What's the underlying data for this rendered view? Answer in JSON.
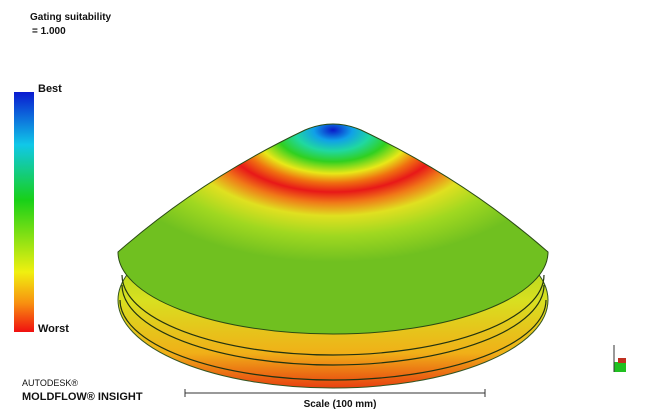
{
  "legend": {
    "title": "Gating suitability",
    "value": "= 1.000",
    "max_label": "Best",
    "min_label": "Worst"
  },
  "branding": {
    "company": "AUTODESK®",
    "product": "MOLDFLOW® INSIGHT"
  },
  "scale_bar": {
    "label": "Scale (100 mm)"
  }
}
